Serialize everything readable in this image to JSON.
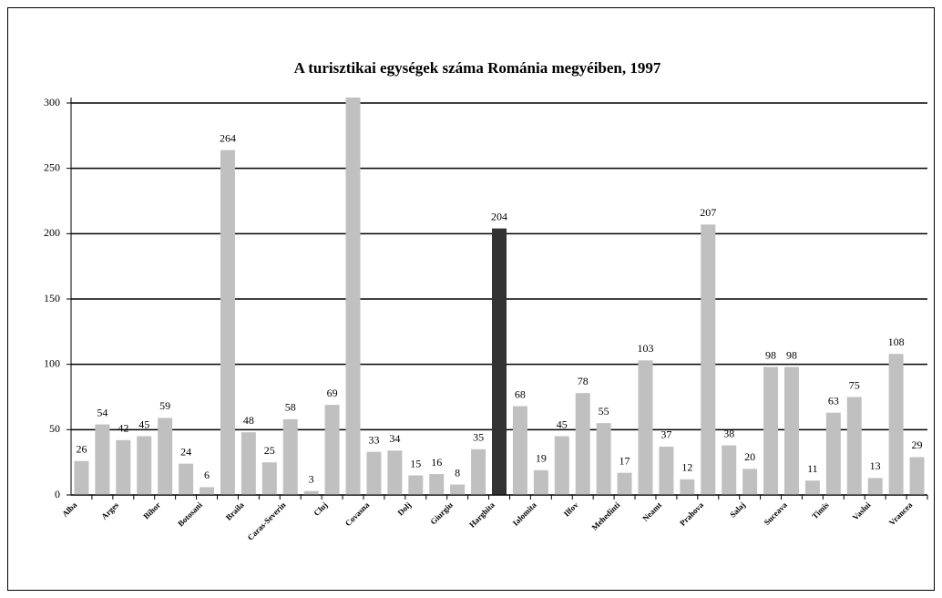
{
  "chart_data": {
    "type": "bar",
    "title": "A turisztikai egységek száma Románia megyéiben, 1997",
    "categories": [
      "Alba",
      null,
      "Arges",
      null,
      "Bihor",
      null,
      "Botosani",
      null,
      "Braila",
      null,
      "Caras-Severin",
      null,
      "Cluj",
      null,
      "Covasna",
      null,
      "Dolj",
      null,
      "Giurgiu",
      null,
      "Harghita",
      null,
      "Ialomita",
      null,
      "Ilfov",
      null,
      "Mehedinti",
      null,
      "Neamt",
      null,
      "Prahova",
      null,
      "Salaj",
      null,
      "Suceava",
      null,
      "Timis",
      null,
      "Vaslui",
      null,
      "Vrancea"
    ],
    "values": [
      26,
      54,
      42,
      45,
      59,
      24,
      6,
      264,
      48,
      25,
      58,
      3,
      69,
      305,
      33,
      34,
      15,
      16,
      8,
      35,
      204,
      68,
      19,
      45,
      78,
      55,
      17,
      103,
      37,
      12,
      207,
      38,
      20,
      98,
      98,
      11,
      63,
      75,
      13,
      108,
      29
    ],
    "colors": [
      "#c0c0c0",
      "#c0c0c0",
      "#c0c0c0",
      "#c0c0c0",
      "#c0c0c0",
      "#c0c0c0",
      "#c0c0c0",
      "#c0c0c0",
      "#c0c0c0",
      "#c0c0c0",
      "#c0c0c0",
      "#c0c0c0",
      "#c0c0c0",
      "#c0c0c0",
      "#c0c0c0",
      "#c0c0c0",
      "#c0c0c0",
      "#c0c0c0",
      "#c0c0c0",
      "#c0c0c0",
      "#333333",
      "#c0c0c0",
      "#c0c0c0",
      "#c0c0c0",
      "#c0c0c0",
      "#c0c0c0",
      "#c0c0c0",
      "#c0c0c0",
      "#c0c0c0",
      "#c0c0c0",
      "#c0c0c0",
      "#c0c0c0",
      "#c0c0c0",
      "#c0c0c0",
      "#c0c0c0",
      "#c0c0c0",
      "#c0c0c0",
      "#c0c0c0",
      "#c0c0c0",
      "#c0c0c0",
      "#c0c0c0"
    ],
    "ylim": [
      0,
      300
    ],
    "yticks": [
      0,
      50,
      100,
      150,
      200,
      250,
      300
    ],
    "grid": true
  }
}
